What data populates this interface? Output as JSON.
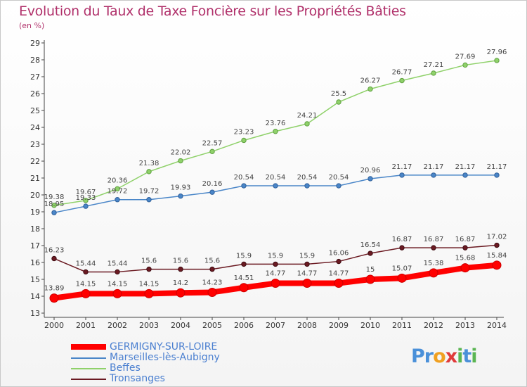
{
  "title": "Evolution du Taux de Taxe Foncière sur les Propriétés Bâties",
  "subtitle": "(en %)",
  "logo": {
    "text": "Proxiti",
    "letters": [
      "P",
      "r",
      "o",
      "x",
      "i",
      "t",
      "i"
    ],
    "colors": [
      "#4a90d9",
      "#4a90d9",
      "#f0a020",
      "#e03a3a",
      "#5ab552",
      "#4a90d9",
      "#5ab552"
    ]
  },
  "chart_data": {
    "type": "line",
    "title": "Evolution du Taux de Taxe Foncière sur les Propriétés Bâties",
    "ylabel": "(en %)",
    "x": [
      "2000",
      "2001",
      "2002",
      "2003",
      "2004",
      "2005",
      "2006",
      "2007",
      "2008",
      "2009",
      "2010",
      "2011",
      "2012",
      "2013",
      "2014"
    ],
    "ylim": [
      13,
      29
    ],
    "yticks": [
      13,
      14,
      15,
      16,
      17,
      18,
      19,
      20,
      21,
      22,
      23,
      24,
      25,
      26,
      27,
      28,
      29
    ],
    "grid": false,
    "legend_position": "bottom-left",
    "series": [
      {
        "name": "GERMIGNY-SUR-LOIRE",
        "color": "#ff0000",
        "values": [
          13.89,
          14.15,
          14.15,
          14.15,
          14.2,
          14.23,
          14.51,
          14.77,
          14.77,
          14.77,
          15,
          15.07,
          15.38,
          15.68,
          15.84
        ],
        "labels": [
          "13.89",
          "14.15",
          "14.15",
          "14.15",
          "14.2",
          "14.23",
          "14.51",
          "14.77",
          "14.77",
          "14.77",
          "15",
          "15.07",
          "15.38",
          "15.68",
          "15.84"
        ]
      },
      {
        "name": "Marseilles-lès-Aubigny",
        "color": "#4a86c8",
        "values": [
          18.95,
          19.33,
          19.72,
          19.72,
          19.93,
          20.16,
          20.54,
          20.54,
          20.54,
          20.54,
          20.96,
          21.17,
          21.17,
          21.17,
          21.17
        ],
        "labels": [
          "18.95",
          "19.33",
          "19.72",
          "19.72",
          "19.93",
          "20.16",
          "20.54",
          "20.54",
          "20.54",
          "20.54",
          "20.96",
          "21.17",
          "21.17",
          "21.17",
          "21.17"
        ]
      },
      {
        "name": "Beffes",
        "color": "#8fd16a",
        "values": [
          19.38,
          19.67,
          20.36,
          21.38,
          22.02,
          22.57,
          23.23,
          23.76,
          24.21,
          25.5,
          26.27,
          26.77,
          27.21,
          27.69,
          27.96
        ],
        "labels": [
          "19.38",
          "19.67",
          "20.36",
          "21.38",
          "22.02",
          "22.57",
          "23.23",
          "23.76",
          "24.21",
          "25.5",
          "26.27",
          "26.77",
          "27.21",
          "27.69",
          "27.96"
        ]
      },
      {
        "name": "Tronsanges",
        "color": "#6b1a22",
        "values": [
          16.23,
          15.44,
          15.44,
          15.6,
          15.6,
          15.6,
          15.9,
          15.9,
          15.9,
          16.06,
          16.54,
          16.87,
          16.87,
          16.87,
          17.02
        ],
        "labels": [
          "16.23",
          "15.44",
          "15.44",
          "15.6",
          "15.6",
          "15.6",
          "15.9",
          "15.9",
          "15.9",
          "16.06",
          "16.54",
          "16.87",
          "16.87",
          "16.87",
          "17.02"
        ]
      }
    ]
  }
}
